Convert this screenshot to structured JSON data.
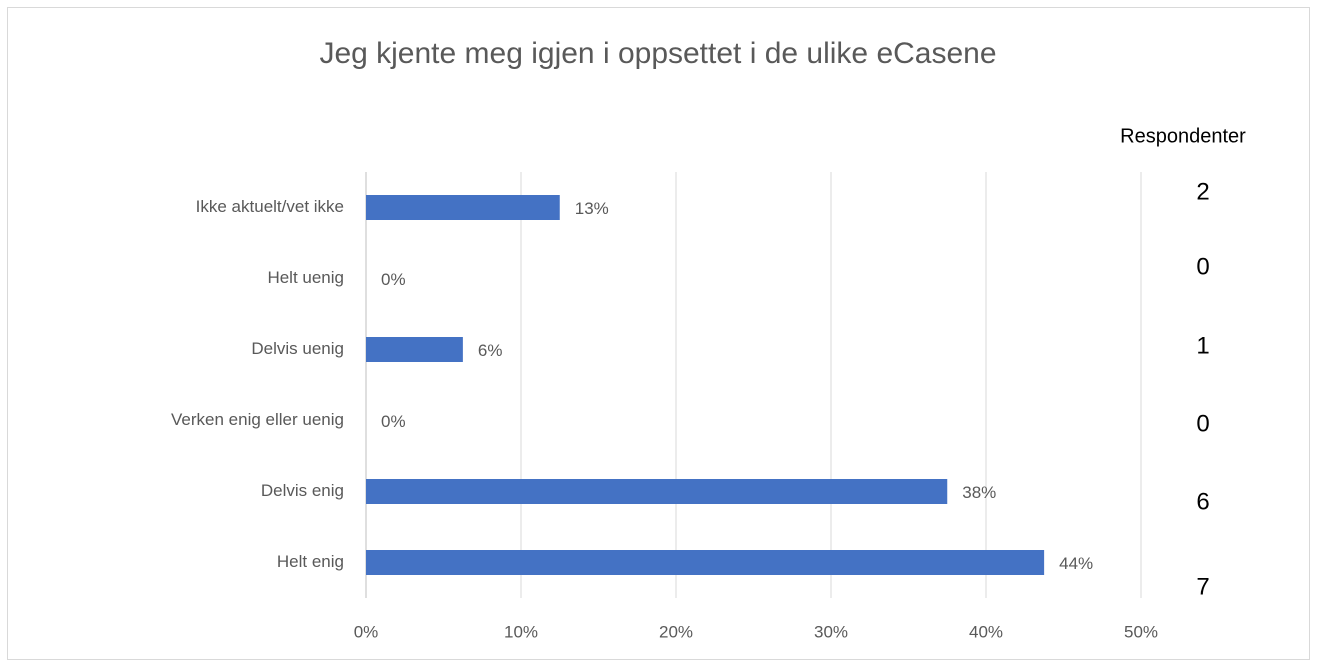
{
  "chart_data": {
    "type": "bar",
    "orientation": "horizontal",
    "title": "Jeg kjente meg igjen i oppsettet i de ulike eCasene",
    "categories": [
      "Ikke aktuelt/vet ikke",
      "Helt uenig",
      "Delvis uenig",
      "Verken enig eller uenig",
      "Delvis enig",
      "Helt enig"
    ],
    "values": [
      12.5,
      0,
      6.25,
      0,
      37.5,
      43.75
    ],
    "value_labels": [
      "13%",
      "0%",
      "6%",
      "0%",
      "38%",
      "44%"
    ],
    "color": "#4472c4",
    "xlim": [
      0,
      50
    ],
    "xticks": [
      {
        "value": 0,
        "label": "0%"
      },
      {
        "value": 10,
        "label": "10%"
      },
      {
        "value": 20,
        "label": "20%"
      },
      {
        "value": 30,
        "label": "30%"
      },
      {
        "value": 40,
        "label": "40%"
      },
      {
        "value": 50,
        "label": "50%"
      }
    ],
    "grid": true,
    "respondents": {
      "title": "Respondenter",
      "values": [
        2,
        0,
        1,
        0,
        6,
        7
      ]
    }
  }
}
